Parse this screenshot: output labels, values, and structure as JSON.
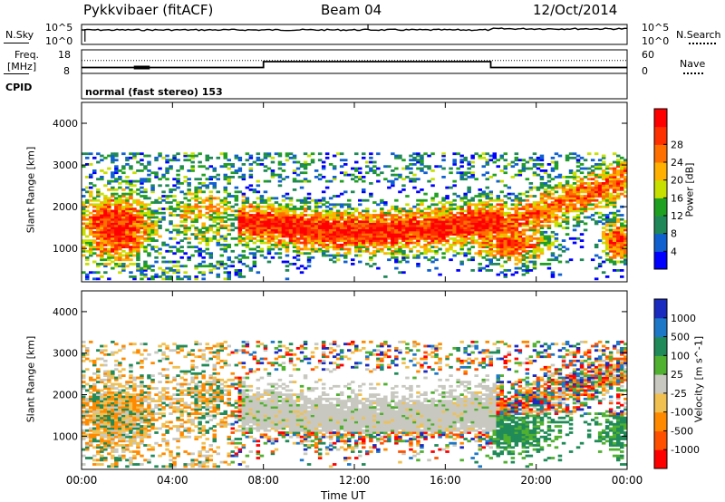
{
  "header": {
    "station": "Pykkvibaer (fitACF)",
    "beam": "Beam 04",
    "date": "12/Oct/2014"
  },
  "noise_panel": {
    "left_label": "N.Sky",
    "left_ticks": [
      "10^5",
      "10^0"
    ],
    "right_ticks": [
      "10^5",
      "10^0"
    ],
    "right_label": "N.Search"
  },
  "freq_panel": {
    "left_label_line1": "Freq.",
    "left_label_line2": "[MHz]",
    "left_ticks": [
      "18",
      "8"
    ],
    "right_ticks": [
      "60",
      "0"
    ],
    "right_label": "Nave",
    "freq_steps": [
      {
        "t0": 0,
        "t1": 8,
        "f": 10.5
      },
      {
        "t0": 8,
        "t1": 18,
        "f": 13
      },
      {
        "t0": 18,
        "t1": 24,
        "f": 10.5
      }
    ],
    "nave_level": 0.55
  },
  "cpid": {
    "label": "CPID",
    "text": "normal (fast stereo) 153"
  },
  "chart_data": [
    {
      "type": "heatmap",
      "title": "",
      "xlabel": "Time UT",
      "ylabel": "Slant Range [km]",
      "xlim": [
        0,
        24
      ],
      "ylim": [
        200,
        4500
      ],
      "x_ticks": [
        "00:00",
        "04:00",
        "08:00",
        "12:00",
        "16:00",
        "20:00",
        "00:00"
      ],
      "y_ticks": [
        "1000",
        "2000",
        "3000",
        "4000"
      ],
      "colorbar": {
        "label": "Power [dB]",
        "ticks": [
          "4",
          "8",
          "12",
          "16",
          "20",
          "24",
          "28"
        ],
        "colors": [
          "#0000ff",
          "#1060d0",
          "#208858",
          "#20a020",
          "#c8e000",
          "#ffb000",
          "#ff7000",
          "#ff3000",
          "#ff0000"
        ]
      }
    },
    {
      "type": "heatmap",
      "title": "",
      "xlabel": "Time UT",
      "ylabel": "Slant Range [km]",
      "xlim": [
        0,
        24
      ],
      "ylim": [
        200,
        4500
      ],
      "x_ticks": [
        "00:00",
        "04:00",
        "08:00",
        "12:00",
        "16:00",
        "20:00",
        "00:00"
      ],
      "y_ticks": [
        "1000",
        "2000",
        "3000",
        "4000"
      ],
      "colorbar": {
        "label": "Velocity [m s^-1]",
        "ticks": [
          "1000",
          "500",
          "100",
          "25",
          "-25",
          "-100",
          "-500",
          "-1000"
        ],
        "colors": [
          "#1a2bbf",
          "#1e78c8",
          "#208a58",
          "#50b030",
          "#c8c8c0",
          "#f0c050",
          "#ff8a00",
          "#ff5000",
          "#ff0000"
        ]
      }
    }
  ],
  "x_axis_label": "Time UT"
}
